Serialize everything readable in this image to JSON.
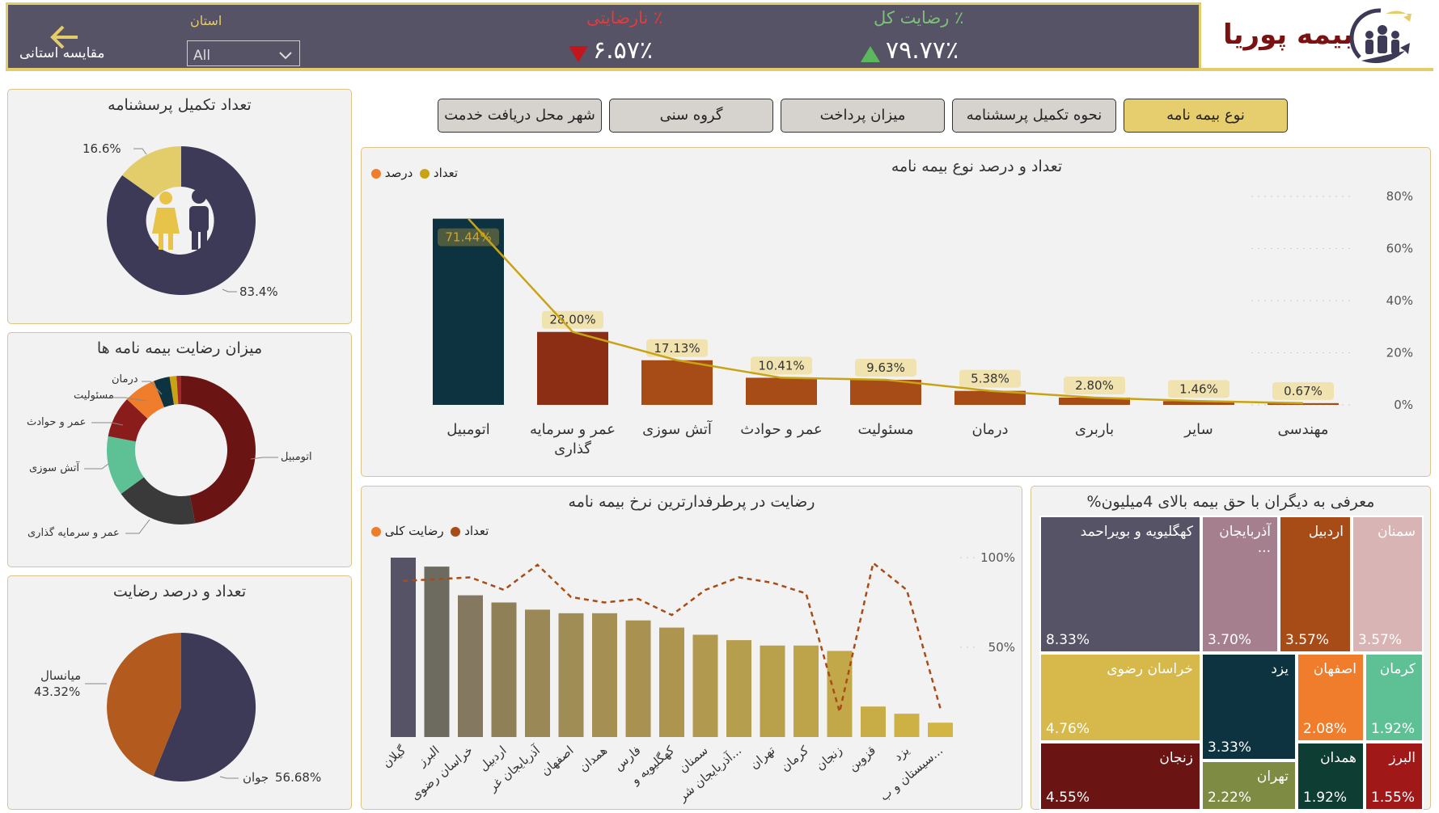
{
  "header": {
    "compare_label": "مقایسه استانی",
    "province_label": "استان",
    "province_value": "All",
    "dissatisfaction_label": "٪ نارضایتی",
    "dissatisfaction_value": "۶.۵۷٪",
    "satisfaction_label": "٪ رضایت کل",
    "satisfaction_value": "۷۹.۷۷٪",
    "brand": "بیمه پوریا"
  },
  "tabs": [
    "نوع بیمه نامه",
    "نحوه تکمیل پرسشنامه",
    "میزان پرداخت",
    "گروه سنی",
    "شهر محل دریافت خدمت"
  ],
  "left_panels": {
    "questionnaire": {
      "title": "تعداد تکمیل پرسشنامه",
      "small": "16.6%",
      "large": "83.4%"
    },
    "satisfaction_by_policy": {
      "title": "میزان رضایت بیمه نامه ها",
      "labels": [
        "درمان",
        "مسئولیت",
        "عمر و حوادث",
        "آتش سوزی",
        "عمر و سرمایه گذاری",
        "اتومبیل"
      ]
    },
    "age": {
      "title": "تعداد و درصد رضایت",
      "mid_label": "میانسال",
      "mid_value": "43.32%",
      "young_label": "جوان",
      "young_value": "56.68%"
    }
  },
  "colors": {
    "accent": "#e3cc6a",
    "header": "#575366",
    "navy": "#3d3a58",
    "gold": "#e3cc6a",
    "dark_teal": "#0e3340",
    "rust": "#8b2e14",
    "orange": "#f07d2b"
  },
  "chart_data": [
    {
      "type": "bar",
      "title": "تعداد و درصد نوع بیمه نامه",
      "legend": [
        "درصد",
        "تعداد"
      ],
      "categories": [
        "اتومبیل",
        "عمر و سرمایه گذاری",
        "آتش سوزی",
        "عمر و حوادث",
        "مسئولیت",
        "درمان",
        "باربری",
        "سایر",
        "مهندسی"
      ],
      "values": [
        71.44,
        28.0,
        17.13,
        10.41,
        9.63,
        5.38,
        2.8,
        1.46,
        0.67
      ],
      "value_labels": [
        "71.44%",
        "28.00%",
        "17.13%",
        "10.41%",
        "9.63%",
        "5.38%",
        "2.80%",
        "1.46%",
        "0.67%"
      ],
      "yticks": [
        "80%",
        "60%",
        "40%",
        "20%",
        "0%"
      ],
      "ylim": [
        0,
        80
      ]
    },
    {
      "type": "bar",
      "title": "رضایت در پرطرفدارترین نرخ بیمه نامه",
      "legend": [
        "رضایت کلی",
        "تعداد"
      ],
      "categories": [
        "گیلان",
        "البرز",
        "خراسان رضوی",
        "اردبیل",
        "آذربایجان غر",
        "اصفهان",
        "همدان",
        "فارس",
        "کهگلیویه و",
        "سمنان",
        "آذربایجان شر...",
        "تهران",
        "کرمان",
        "زنجان",
        "قزوین",
        "یزد",
        "سیستان و ب..."
      ],
      "count_values": [
        100,
        95,
        79,
        75,
        71,
        69,
        69,
        65,
        61,
        57,
        54,
        51,
        51,
        48,
        17,
        13,
        8
      ],
      "satisfaction_values": [
        87,
        88,
        89,
        82,
        96,
        78,
        75,
        77,
        68,
        82,
        89,
        86,
        80,
        14,
        97,
        82,
        16
      ],
      "yticks": [
        "100%",
        "50%"
      ]
    },
    {
      "type": "treemap",
      "title": "%معرفی به دیگران با حق بیمه بالای 4میلیون",
      "items": [
        {
          "name": "کهگلیویه و بویراحمد",
          "value": "8.33%"
        },
        {
          "name": "آذربایجان ...",
          "value": "3.70%"
        },
        {
          "name": "اردبیل",
          "value": "3.57%"
        },
        {
          "name": "سمنان",
          "value": "3.57%"
        },
        {
          "name": "خراسان رضوی",
          "value": "4.76%"
        },
        {
          "name": "یزد",
          "value": "3.33%"
        },
        {
          "name": "اصفهان",
          "value": "2.08%"
        },
        {
          "name": "کرمان",
          "value": "1.92%"
        },
        {
          "name": "زنجان",
          "value": "4.55%"
        },
        {
          "name": "تهران",
          "value": "2.22%"
        },
        {
          "name": "همدان",
          "value": "1.92%"
        },
        {
          "name": "البرز",
          "value": "1.55%"
        }
      ]
    }
  ]
}
